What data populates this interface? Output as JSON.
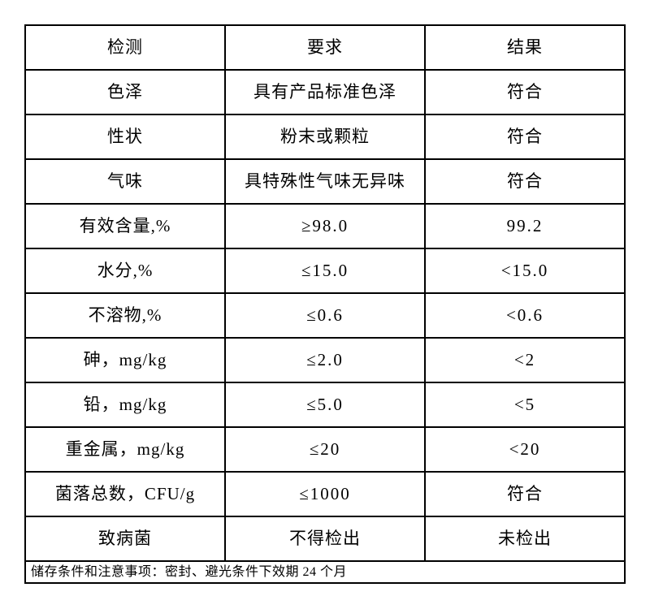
{
  "table": {
    "headers": [
      "检测",
      "要求",
      "结果"
    ],
    "rows": [
      {
        "test": "色泽",
        "requirement": "具有产品标准色泽",
        "result": "符合"
      },
      {
        "test": "性状",
        "requirement": "粉末或颗粒",
        "result": "符合"
      },
      {
        "test": "气味",
        "requirement": "具特殊性气味无异味",
        "result": "符合"
      },
      {
        "test": "有效含量,%",
        "requirement": "≥98.0",
        "result": "99.2"
      },
      {
        "test": "水分,%",
        "requirement": "≤15.0",
        "result": "<15.0"
      },
      {
        "test": "不溶物,%",
        "requirement": "≤0.6",
        "result": "<0.6"
      },
      {
        "test": "砷，mg/kg",
        "requirement": "≤2.0",
        "result": "<2"
      },
      {
        "test": "铅，mg/kg",
        "requirement": "≤5.0",
        "result": "<5"
      },
      {
        "test": "重金属，mg/kg",
        "requirement": "≤20",
        "result": "<20"
      },
      {
        "test": "菌落总数，CFU/g",
        "requirement": "≤1000",
        "result": "符合"
      },
      {
        "test": "致病菌",
        "requirement": "不得检出",
        "result": "未检出"
      }
    ],
    "footer_note": "储存条件和注意事项：密封、避光条件下效期 24 个月"
  },
  "colors": {
    "border": "#000000",
    "text": "#000000",
    "background": "#ffffff"
  }
}
